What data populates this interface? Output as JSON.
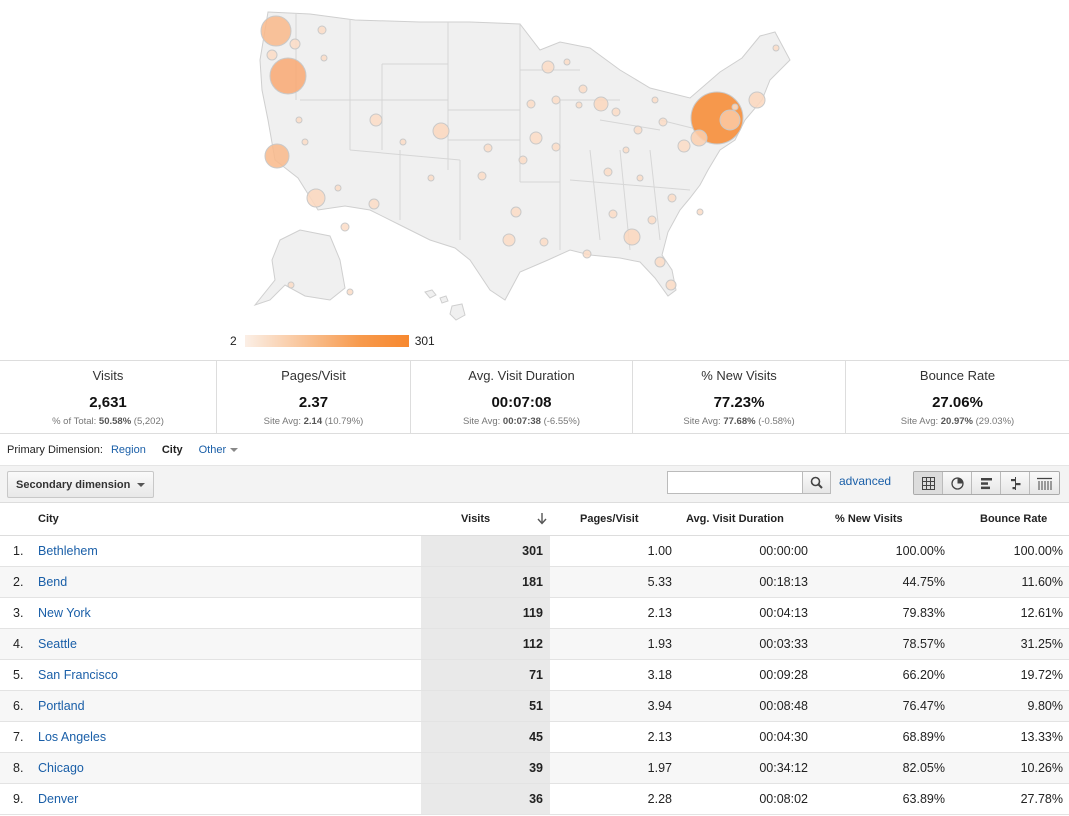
{
  "map_legend": {
    "min": "2",
    "max": "301"
  },
  "summary": [
    {
      "name": "Visits",
      "value": "2,631",
      "sub_prefix": "% of Total:",
      "sub_bold": "50.58%",
      "sub_suffix": "(5,202)"
    },
    {
      "name": "Pages/Visit",
      "value": "2.37",
      "sub_prefix": "Site Avg:",
      "sub_bold": "2.14",
      "sub_suffix": "(10.79%)"
    },
    {
      "name": "Avg. Visit Duration",
      "value": "00:07:08",
      "sub_prefix": "Site Avg:",
      "sub_bold": "00:07:38",
      "sub_suffix": "(-6.55%)"
    },
    {
      "name": "% New Visits",
      "value": "77.23%",
      "sub_prefix": "Site Avg:",
      "sub_bold": "77.68%",
      "sub_suffix": "(-0.58%)"
    },
    {
      "name": "Bounce Rate",
      "value": "27.06%",
      "sub_prefix": "Site Avg:",
      "sub_bold": "20.97%",
      "sub_suffix": "(29.03%)"
    }
  ],
  "dimension": {
    "label": "Primary Dimension:",
    "region": "Region",
    "city": "City",
    "other": "Other"
  },
  "toolbar": {
    "secondary_dimension": "Secondary dimension",
    "search_value": "",
    "advanced": "advanced"
  },
  "table": {
    "headers": {
      "city": "City",
      "visits": "Visits",
      "pages": "Pages/Visit",
      "duration": "Avg. Visit Duration",
      "new_visits": "% New Visits",
      "bounce": "Bounce Rate"
    },
    "rows": [
      {
        "idx": "1.",
        "city": "Bethlehem",
        "visits": "301",
        "pages": "1.00",
        "duration": "00:00:00",
        "new_visits": "100.00%",
        "bounce": "100.00%"
      },
      {
        "idx": "2.",
        "city": "Bend",
        "visits": "181",
        "pages": "5.33",
        "duration": "00:18:13",
        "new_visits": "44.75%",
        "bounce": "11.60%"
      },
      {
        "idx": "3.",
        "city": "New York",
        "visits": "119",
        "pages": "2.13",
        "duration": "00:04:13",
        "new_visits": "79.83%",
        "bounce": "12.61%"
      },
      {
        "idx": "4.",
        "city": "Seattle",
        "visits": "112",
        "pages": "1.93",
        "duration": "00:03:33",
        "new_visits": "78.57%",
        "bounce": "31.25%"
      },
      {
        "idx": "5.",
        "city": "San Francisco",
        "visits": "71",
        "pages": "3.18",
        "duration": "00:09:28",
        "new_visits": "66.20%",
        "bounce": "19.72%"
      },
      {
        "idx": "6.",
        "city": "Portland",
        "visits": "51",
        "pages": "3.94",
        "duration": "00:08:48",
        "new_visits": "76.47%",
        "bounce": "9.80%"
      },
      {
        "idx": "7.",
        "city": "Los Angeles",
        "visits": "45",
        "pages": "2.13",
        "duration": "00:04:30",
        "new_visits": "68.89%",
        "bounce": "13.33%"
      },
      {
        "idx": "8.",
        "city": "Chicago",
        "visits": "39",
        "pages": "1.97",
        "duration": "00:34:12",
        "new_visits": "82.05%",
        "bounce": "10.26%"
      },
      {
        "idx": "9.",
        "city": "Denver",
        "visits": "36",
        "pages": "2.28",
        "duration": "00:08:02",
        "new_visits": "63.89%",
        "bounce": "27.78%"
      }
    ]
  },
  "colors": {
    "accent_orange": "#f7882f",
    "link_blue": "#1a5fa8",
    "map_land": "#f0f0f0",
    "map_border": "#cfcfcf"
  }
}
